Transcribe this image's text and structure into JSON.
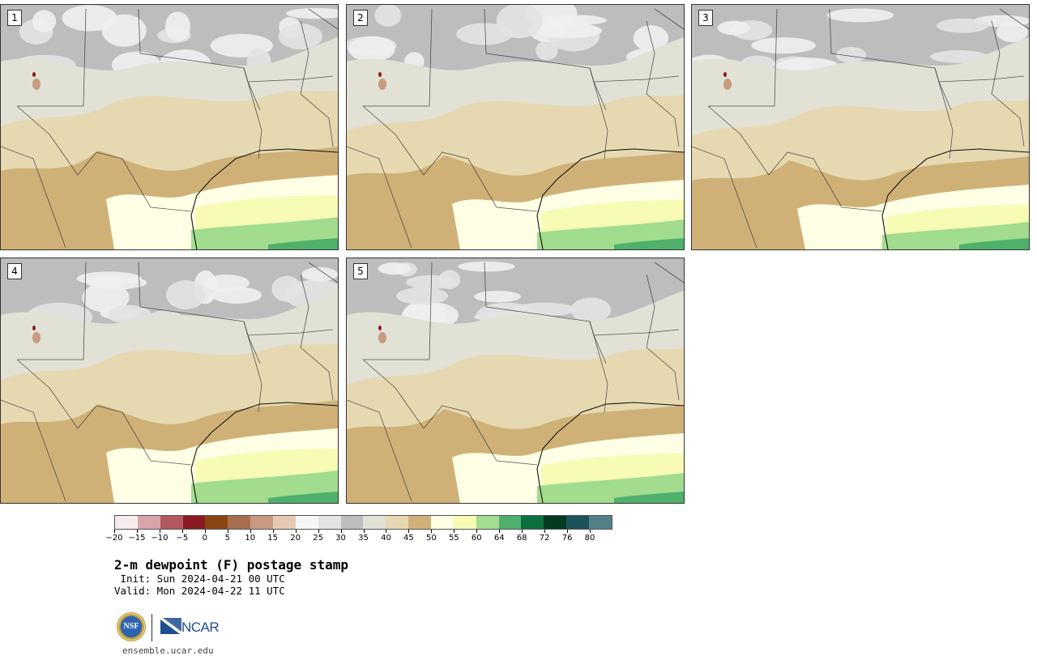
{
  "panels": [
    {
      "label": "1"
    },
    {
      "label": "2"
    },
    {
      "label": "3"
    },
    {
      "label": "4"
    },
    {
      "label": "5"
    }
  ],
  "colorbar": {
    "colors": [
      "#f6ecec",
      "#d8a4a9",
      "#b3595f",
      "#8b1a22",
      "#8c4510",
      "#a86f4e",
      "#c89a80",
      "#e6c9b5",
      "#f6f6f6",
      "#e3e3e3",
      "#bdbdbd",
      "#e1e1d6",
      "#e6d8b1",
      "#cfb178",
      "#ffffe6",
      "#f7fbb4",
      "#a1dc8f",
      "#4fb06c",
      "#0c6f3e",
      "#033a20",
      "#1d5259",
      "#53818a"
    ],
    "tick_labels": [
      "−20",
      "−15",
      "−10",
      "−5",
      "0",
      "5",
      "10",
      "15",
      "20",
      "25",
      "30",
      "35",
      "40",
      "45",
      "50",
      "55",
      "60",
      "64",
      "68",
      "72",
      "76",
      "80"
    ]
  },
  "title": "2-m dewpoint (F) postage stamp",
  "init": " Init: Sun 2024-04-21 00 UTC",
  "valid": "Valid: Mon 2024-04-22 11 UTC",
  "logos": {
    "nsf": "NSF",
    "ncar": "NCAR"
  },
  "site": "ensemble.ucar.edu"
}
